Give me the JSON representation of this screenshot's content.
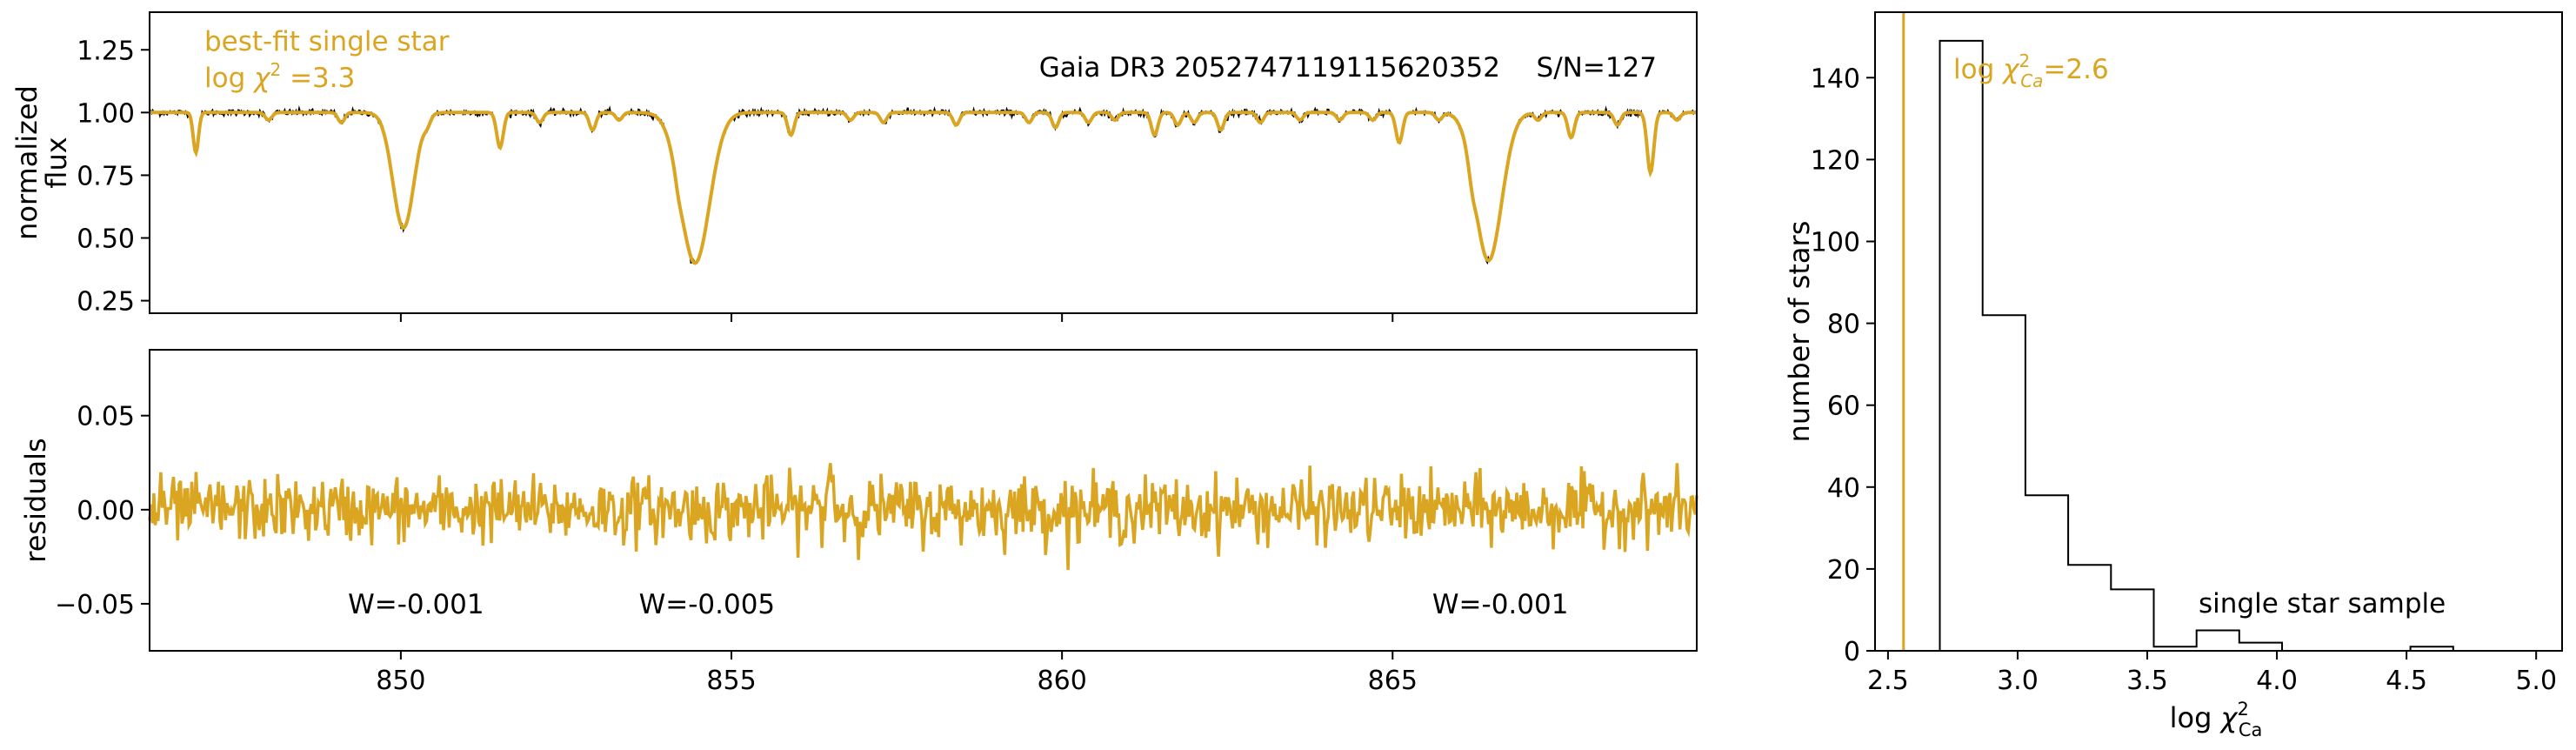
{
  "colors": {
    "fit": "#DAA520",
    "data": "#000000",
    "axes": "#000000"
  },
  "chart_data": [
    {
      "type": "line",
      "id": "spectrum",
      "xlim": [
        846.2,
        869.6
      ],
      "ylim": [
        0.2,
        1.4
      ],
      "ylabel_lines": [
        "normalized",
        "flux"
      ],
      "yticks": [
        0.25,
        0.5,
        0.75,
        1.0,
        1.25
      ],
      "yticklabels": [
        "0.25",
        "0.50",
        "0.75",
        "1.00",
        "1.25"
      ],
      "xticks": [
        850,
        855,
        860,
        865
      ],
      "title": "Gaia DR3 2052747119115620352",
      "snr_label": "S/N=127",
      "legend_line1": "best-fit single star",
      "legend_line2_prefix": "log ",
      "legend_line2_symbol": "χ",
      "legend_line2_sup": "2",
      "legend_line2_suffix": " =3.3",
      "absorption_lines": [
        {
          "center": 846.9,
          "depth": 0.16,
          "width": 0.04
        },
        {
          "center": 848.0,
          "depth": 0.03,
          "width": 0.05
        },
        {
          "center": 849.1,
          "depth": 0.04,
          "width": 0.05
        },
        {
          "center": 850.04,
          "depth": 0.46,
          "width": 0.16
        },
        {
          "center": 850.4,
          "depth": 0.03,
          "width": 0.05
        },
        {
          "center": 851.5,
          "depth": 0.14,
          "width": 0.05
        },
        {
          "center": 852.1,
          "depth": 0.04,
          "width": 0.05
        },
        {
          "center": 852.9,
          "depth": 0.07,
          "width": 0.05
        },
        {
          "center": 853.3,
          "depth": 0.03,
          "width": 0.05
        },
        {
          "center": 854.2,
          "depth": 0.03,
          "width": 0.05
        },
        {
          "center": 854.45,
          "depth": 0.6,
          "width": 0.22
        },
        {
          "center": 855.9,
          "depth": 0.09,
          "width": 0.05
        },
        {
          "center": 856.8,
          "depth": 0.03,
          "width": 0.05
        },
        {
          "center": 857.3,
          "depth": 0.04,
          "width": 0.05
        },
        {
          "center": 858.4,
          "depth": 0.05,
          "width": 0.05
        },
        {
          "center": 859.5,
          "depth": 0.04,
          "width": 0.05
        },
        {
          "center": 859.9,
          "depth": 0.06,
          "width": 0.05
        },
        {
          "center": 860.4,
          "depth": 0.04,
          "width": 0.05
        },
        {
          "center": 860.8,
          "depth": 0.03,
          "width": 0.05
        },
        {
          "center": 861.4,
          "depth": 0.09,
          "width": 0.05
        },
        {
          "center": 861.75,
          "depth": 0.05,
          "width": 0.05
        },
        {
          "center": 862.0,
          "depth": 0.04,
          "width": 0.05
        },
        {
          "center": 862.4,
          "depth": 0.07,
          "width": 0.05
        },
        {
          "center": 863.0,
          "depth": 0.04,
          "width": 0.05
        },
        {
          "center": 863.6,
          "depth": 0.03,
          "width": 0.05
        },
        {
          "center": 864.2,
          "depth": 0.03,
          "width": 0.05
        },
        {
          "center": 864.7,
          "depth": 0.03,
          "width": 0.05
        },
        {
          "center": 865.1,
          "depth": 0.12,
          "width": 0.05
        },
        {
          "center": 865.7,
          "depth": 0.03,
          "width": 0.05
        },
        {
          "center": 866.2,
          "depth": 0.05,
          "width": 0.05
        },
        {
          "center": 866.45,
          "depth": 0.59,
          "width": 0.2
        },
        {
          "center": 867.2,
          "depth": 0.03,
          "width": 0.05
        },
        {
          "center": 867.7,
          "depth": 0.1,
          "width": 0.05
        },
        {
          "center": 868.4,
          "depth": 0.05,
          "width": 0.05
        },
        {
          "center": 868.9,
          "depth": 0.24,
          "width": 0.05
        },
        {
          "center": 869.3,
          "depth": 0.03,
          "width": 0.05
        }
      ]
    },
    {
      "type": "line",
      "id": "residuals",
      "xlim": [
        846.2,
        869.6
      ],
      "ylim": [
        -0.075,
        0.085
      ],
      "ylabel": "residuals",
      "yticks": [
        -0.05,
        0.0,
        0.05
      ],
      "yticklabels": [
        "−0.05",
        "0.00",
        "0.05"
      ],
      "xticks": [
        850,
        855,
        860,
        865
      ],
      "xticklabels": [
        "850",
        "855",
        "860",
        "865"
      ],
      "noise_rms": 0.0085,
      "annotations": [
        {
          "x": 849.2,
          "y": -0.05,
          "text": "W=-0.001"
        },
        {
          "x": 853.6,
          "y": -0.05,
          "text": "W=-0.005"
        },
        {
          "x": 865.6,
          "y": -0.05,
          "text": "W=-0.001"
        }
      ]
    },
    {
      "type": "histogram",
      "id": "chi2-histogram",
      "xlim": [
        2.45,
        5.1
      ],
      "ylim": [
        0,
        156
      ],
      "xlabel_prefix": "log ",
      "xlabel_symbol": "χ",
      "xlabel_sup": "2",
      "xlabel_sub": "Ca",
      "ylabel": "number of stars",
      "xticks": [
        2.5,
        3.0,
        3.5,
        4.0,
        4.5,
        5.0
      ],
      "xticklabels": [
        "2.5",
        "3.0",
        "3.5",
        "4.0",
        "4.5",
        "5.0"
      ],
      "yticks": [
        0,
        20,
        40,
        60,
        80,
        100,
        120,
        140
      ],
      "yticklabels": [
        "0",
        "20",
        "40",
        "60",
        "80",
        "100",
        "120",
        "140"
      ],
      "bin_edges": [
        2.7,
        2.865,
        3.03,
        3.195,
        3.36,
        3.525,
        3.69,
        3.855,
        4.02,
        4.185,
        4.35,
        4.515,
        4.68
      ],
      "counts": [
        149,
        82,
        38,
        21,
        15,
        1,
        5,
        2,
        0,
        0,
        0,
        1
      ],
      "marker_x": 2.56,
      "marker_prefix": "log ",
      "marker_symbol": "χ",
      "marker_sup": "2",
      "marker_sub": "Ca",
      "marker_suffix": "=2.6",
      "sample_label": "single star sample"
    }
  ]
}
